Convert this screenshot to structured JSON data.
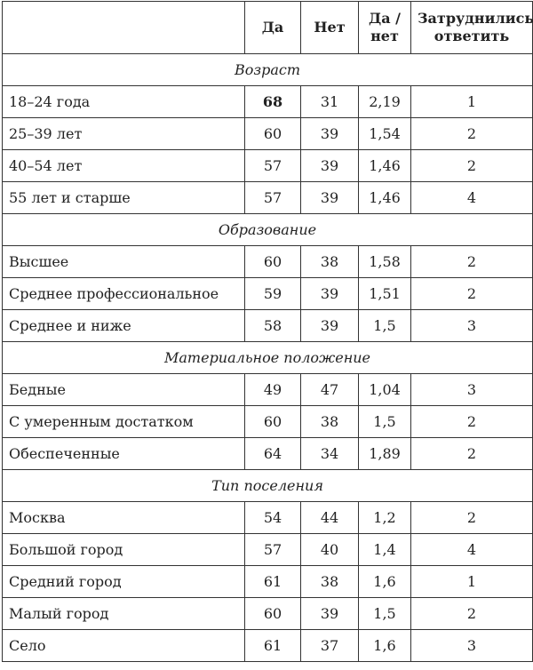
{
  "header": [
    "",
    "Да",
    "Нет",
    "Да / нет",
    "Затруднились ответить"
  ],
  "sections": [
    {
      "title": "Возраст",
      "rows": [
        {
          "label": "18–24 года",
          "values": [
            "68",
            "31",
            "2,19",
            "1"
          ],
          "bold_yes": true
        },
        {
          "label": "25–39 лет",
          "values": [
            "60",
            "39",
            "1,54",
            "2"
          ]
        },
        {
          "label": "40–54 лет",
          "values": [
            "57",
            "39",
            "1,46",
            "2"
          ]
        },
        {
          "label": "55 лет и старше",
          "values": [
            "57",
            "39",
            "1,46",
            "4"
          ]
        }
      ]
    },
    {
      "title": "Образование",
      "rows": [
        {
          "label": "Высшее",
          "values": [
            "60",
            "38",
            "1,58",
            "2"
          ]
        },
        {
          "label": "Среднее профессиональное",
          "values": [
            "59",
            "39",
            "1,51",
            "2"
          ]
        },
        {
          "label": "Среднее и ниже",
          "values": [
            "58",
            "39",
            "1,5",
            "3"
          ]
        }
      ]
    },
    {
      "title": "Материальное положение",
      "rows": [
        {
          "label": "Бедные",
          "values": [
            "49",
            "47",
            "1,04",
            "3"
          ]
        },
        {
          "label": "С умеренным достатком",
          "values": [
            "60",
            "38",
            "1,5",
            "2"
          ]
        },
        {
          "label": "Обеспеченные",
          "values": [
            "64",
            "34",
            "1,89",
            "2"
          ]
        }
      ]
    },
    {
      "title": "Тип поселения",
      "rows": [
        {
          "label": "Москва",
          "values": [
            "54",
            "44",
            "1,2",
            "2"
          ]
        },
        {
          "label": "Большой город",
          "values": [
            "57",
            "40",
            "1,4",
            "4"
          ]
        },
        {
          "label": "Средний город",
          "values": [
            "61",
            "38",
            "1,6",
            "1"
          ]
        },
        {
          "label": "Малый город",
          "values": [
            "60",
            "39",
            "1,5",
            "2"
          ]
        },
        {
          "label": "Село",
          "values": [
            "61",
            "37",
            "1,6",
            "3"
          ]
        }
      ]
    }
  ]
}
